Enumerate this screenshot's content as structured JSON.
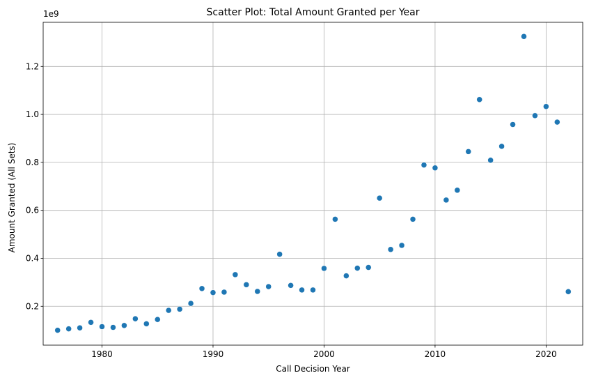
{
  "chart_data": {
    "type": "scatter",
    "title": "Scatter Plot: Total Amount Granted per Year",
    "xlabel": "Call Decision Year",
    "ylabel": "Amount Granted (All Sets)",
    "y_offset_text": "1e9",
    "xlim": [
      1974.7,
      2023.3
    ],
    "ylim": [
      0.038,
      1.384
    ],
    "x_ticks": [
      1980,
      1990,
      2000,
      2010,
      2020
    ],
    "y_ticks": [
      0.2,
      0.4,
      0.6,
      0.8,
      1.0,
      1.2
    ],
    "x_tick_labels": [
      "1980",
      "1990",
      "2000",
      "2010",
      "2020"
    ],
    "y_tick_labels": [
      "0.2",
      "0.4",
      "0.6",
      "0.8",
      "1.0",
      "1.2"
    ],
    "grid": true,
    "marker_color": "#1f77b4",
    "x": [
      1976,
      1977,
      1978,
      1979,
      1980,
      1981,
      1982,
      1983,
      1984,
      1985,
      1986,
      1987,
      1988,
      1989,
      1990,
      1991,
      1992,
      1993,
      1994,
      1995,
      1996,
      1997,
      1998,
      1999,
      2000,
      2001,
      2002,
      2003,
      2004,
      2005,
      2006,
      2007,
      2008,
      2009,
      2010,
      2011,
      2012,
      2013,
      2014,
      2015,
      2016,
      2017,
      2018,
      2019,
      2020,
      2021,
      2022
    ],
    "y": [
      0.1,
      0.106,
      0.11,
      0.133,
      0.115,
      0.112,
      0.12,
      0.148,
      0.127,
      0.145,
      0.183,
      0.188,
      0.212,
      0.274,
      0.257,
      0.259,
      0.332,
      0.29,
      0.262,
      0.282,
      0.417,
      0.287,
      0.268,
      0.268,
      0.358,
      0.563,
      0.327,
      0.359,
      0.362,
      0.651,
      0.437,
      0.454,
      0.563,
      0.789,
      0.777,
      0.643,
      0.684,
      0.845,
      1.062,
      0.809,
      0.867,
      0.958,
      1.325,
      0.995,
      1.033,
      0.968,
      0.261
    ]
  }
}
